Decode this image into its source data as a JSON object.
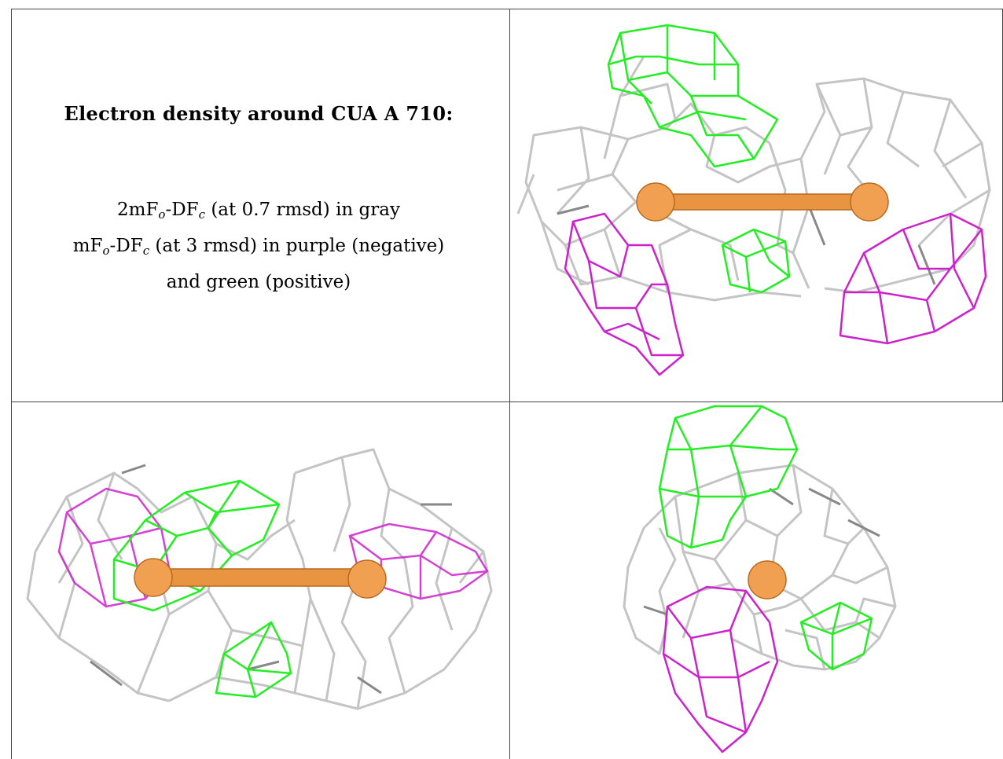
{
  "caption": {
    "title": "Electron density around CUA A 710:",
    "lines": [
      {
        "prefix": "2mF",
        "sub1": "o",
        "mid": "-DF",
        "sub2": "c",
        "suffix": " (at 0.7 rmsd) in gray"
      },
      {
        "prefix": "mF",
        "sub1": "o",
        "mid": "-DF",
        "sub2": "c",
        "suffix": " (at 3 rmsd) in purple (negative)"
      },
      {
        "text": "and green (positive)"
      }
    ]
  },
  "colors": {
    "gray_mesh": "#c4c4c4",
    "dark_gray_mesh": "#888888",
    "purple_mesh": "#cc22cc",
    "green_mesh": "#22ee22",
    "copper_atom": "#f0a050",
    "border": "#444444"
  },
  "panels": [
    {
      "name": "view-top-right",
      "atoms": 2
    },
    {
      "name": "view-bottom-left",
      "atoms": 2
    },
    {
      "name": "view-bottom-right",
      "atoms": 1
    }
  ]
}
